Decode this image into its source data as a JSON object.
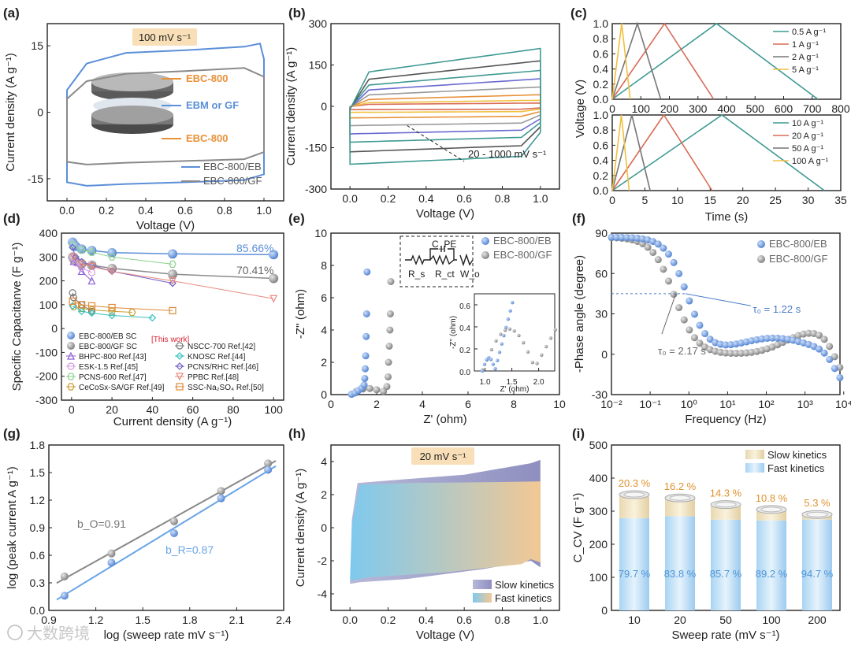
{
  "panels": [
    {
      "label": "(a)"
    },
    {
      "label": "(b)"
    },
    {
      "label": "(c)"
    },
    {
      "label": "(d)"
    },
    {
      "label": "(e)"
    },
    {
      "label": "(f)"
    },
    {
      "label": "(g)"
    },
    {
      "label": "(h)"
    },
    {
      "label": "(i)"
    }
  ],
  "colors": {
    "eb": "#5b8fd8",
    "gf": "#8a8a8a",
    "teal": "#3f9a93",
    "red": "#d96b57",
    "yellow": "#f0c040",
    "gray": "#777777",
    "orange": "#e8913a"
  },
  "watermark": "大数跨境",
  "chart_data": [
    {
      "id": "a",
      "type": "line",
      "xlabel": "Voltage (V)",
      "ylabel": "Current density (A g⁻¹)",
      "xlim": [
        -0.1,
        1.1
      ],
      "ylim": [
        -20,
        20
      ],
      "xticks": [
        "0.0",
        "0.2",
        "0.4",
        "0.6",
        "0.8",
        "1.0"
      ],
      "yticks": [
        "-15",
        "0",
        "15"
      ],
      "badge": "100 mV s⁻¹",
      "annotations": [
        "EBC-800",
        "EBM or GF",
        "EBC-800"
      ],
      "series": [
        {
          "name": "EBC-800/EB",
          "upper": [
            [
              0,
              5
            ],
            [
              0.1,
              11
            ],
            [
              0.3,
              13.4
            ],
            [
              0.6,
              14
            ],
            [
              0.9,
              14.8
            ],
            [
              0.98,
              15.5
            ],
            [
              1.0,
              12
            ]
          ],
          "lower": [
            [
              0,
              -15.8
            ],
            [
              0.1,
              -16.6
            ],
            [
              0.3,
              -16.2
            ],
            [
              0.6,
              -15.8
            ],
            [
              0.9,
              -15.3
            ],
            [
              1.0,
              -14
            ]
          ]
        },
        {
          "name": "EBC-800/GF",
          "upper": [
            [
              0,
              3
            ],
            [
              0.1,
              7
            ],
            [
              0.3,
              8.7
            ],
            [
              0.6,
              9.3
            ],
            [
              0.9,
              10
            ],
            [
              1.0,
              8
            ]
          ],
          "lower": [
            [
              0,
              -11.2
            ],
            [
              0.1,
              -11.8
            ],
            [
              0.3,
              -11.4
            ],
            [
              0.6,
              -11
            ],
            [
              0.9,
              -10.6
            ],
            [
              1.0,
              -9
            ]
          ]
        }
      ]
    },
    {
      "id": "b",
      "type": "line",
      "xlabel": "Voltage (V)",
      "ylabel": "Current density (A g⁻¹)",
      "xlim": [
        -0.1,
        1.1
      ],
      "ylim": [
        -300,
        300
      ],
      "xticks": [
        "0.0",
        "0.2",
        "0.4",
        "0.6",
        "0.8",
        "1.0"
      ],
      "yticks": [
        "-300",
        "-150",
        "0",
        "150",
        "300"
      ],
      "annotation": "20 - 1000 mV s⁻¹",
      "series_amplitudes": [
        12,
        22,
        42,
        70,
        100,
        130,
        165,
        210
      ]
    },
    {
      "id": "c",
      "type": "line",
      "xlabel": "Time (s)",
      "ylabel": "Voltage (V)",
      "top": {
        "xlim": [
          0,
          800
        ],
        "ylim": [
          0,
          1.0
        ],
        "xticks": [
          "0",
          "100",
          "200",
          "300",
          "400",
          "500",
          "600",
          "700",
          "800"
        ],
        "yticks": [
          "0.0",
          "0.2",
          "0.4",
          "0.6",
          "0.8",
          "1.0"
        ],
        "series": [
          {
            "name": "0.5 A g⁻¹",
            "peak": 365,
            "end": 720
          },
          {
            "name": "1 A g⁻¹",
            "peak": 183,
            "end": 355
          },
          {
            "name": "2 A g⁻¹",
            "peak": 88,
            "end": 170
          },
          {
            "name": "5 A g⁻¹",
            "peak": 33,
            "end": 63
          }
        ]
      },
      "bottom": {
        "xlim": [
          0,
          35
        ],
        "ylim": [
          0,
          1.0
        ],
        "xticks": [
          "0",
          "5",
          "10",
          "15",
          "20",
          "25",
          "30",
          "35"
        ],
        "yticks": [
          "0.0",
          "0.2",
          "0.4",
          "0.6",
          "0.8",
          "1.0"
        ],
        "series": [
          {
            "name": "10 A g⁻¹",
            "peak": 16.8,
            "end": 32.5
          },
          {
            "name": "20 A g⁻¹",
            "peak": 7.9,
            "end": 15.3
          },
          {
            "name": "50 A g⁻¹",
            "peak": 3.0,
            "end": 5.8
          },
          {
            "name": "100 A g⁻¹",
            "peak": 1.4,
            "end": 2.6
          }
        ]
      }
    },
    {
      "id": "d",
      "type": "scatter",
      "xlabel": "Current density (A g⁻¹)",
      "ylabel": "Specific Capacitanve (F g⁻¹)",
      "xlim": [
        -5,
        105
      ],
      "ylim": [
        -300,
        400
      ],
      "xticks": [
        "0",
        "20",
        "40",
        "60",
        "80",
        "100"
      ],
      "yticks": [
        "-300",
        "-200",
        "-100",
        "0",
        "100",
        "200",
        "300",
        "400"
      ],
      "labels": {
        "eb_pct": "85.66%",
        "gf_pct": "70.41%",
        "this_work": "[This work]"
      },
      "series": [
        {
          "name": "EBC-800/EB SC",
          "points": [
            [
              0.5,
              362
            ],
            [
              1,
              355
            ],
            [
              2,
              345
            ],
            [
              5,
              333
            ],
            [
              10,
              327
            ],
            [
              20,
              318
            ],
            [
              50,
              313
            ],
            [
              100,
              310
            ]
          ]
        },
        {
          "name": "EBC-800/GF SC",
          "points": [
            [
              0.5,
              300
            ],
            [
              1,
              292
            ],
            [
              2,
              283
            ],
            [
              5,
              272
            ],
            [
              10,
              266
            ],
            [
              20,
              252
            ],
            [
              50,
              228
            ],
            [
              100,
              210
            ]
          ]
        },
        {
          "name": "BHPC-800 Ref.[43]",
          "points": [
            [
              1,
              282
            ],
            [
              5,
              240
            ],
            [
              10,
              200
            ]
          ]
        },
        {
          "name": "ESK-1.5 Ref.[45]",
          "points": [
            [
              0.5,
              300
            ],
            [
              2,
              275
            ],
            [
              5,
              255
            ],
            [
              10,
              235
            ]
          ]
        },
        {
          "name": "PCNS-600 Ref.[47]",
          "points": [
            [
              0.5,
              350
            ],
            [
              5,
              330
            ],
            [
              10,
              320
            ],
            [
              20,
              300
            ],
            [
              50,
              270
            ]
          ]
        },
        {
          "name": "CeCoSx-SA/GF Ref.[49]",
          "points": [
            [
              1,
              92
            ],
            [
              5,
              85
            ],
            [
              10,
              78
            ],
            [
              20,
              72
            ],
            [
              30,
              68
            ]
          ]
        },
        {
          "name": "NSCC-700 Ref.[42]",
          "points": [
            [
              0.5,
              150
            ],
            [
              1,
              130
            ],
            [
              5,
              100
            ],
            [
              10,
              72
            ]
          ]
        },
        {
          "name": "KNOSC Ref.[44]",
          "points": [
            [
              0.5,
              95
            ],
            [
              5,
              72
            ],
            [
              10,
              65
            ],
            [
              20,
              55
            ],
            [
              40,
              45
            ]
          ]
        },
        {
          "name": "PCNS/RHC Ref.[46]",
          "points": [
            [
              0.5,
              340
            ],
            [
              2,
              300
            ],
            [
              5,
              280
            ],
            [
              10,
              265
            ],
            [
              20,
              240
            ],
            [
              50,
              190
            ]
          ]
        },
        {
          "name": "PPBC Ref.[48]",
          "points": [
            [
              1,
              300
            ],
            [
              5,
              270
            ],
            [
              10,
              260
            ],
            [
              20,
              240
            ],
            [
              50,
              200
            ],
            [
              100,
              125
            ]
          ]
        },
        {
          "name": "SSC-Na₂SO₄ Ref.[50]",
          "points": [
            [
              0.5,
              115
            ],
            [
              5,
              100
            ],
            [
              10,
              95
            ],
            [
              20,
              88
            ],
            [
              50,
              75
            ]
          ]
        }
      ]
    },
    {
      "id": "e",
      "type": "scatter",
      "xlabel": "Z' (ohm)",
      "ylabel": "-Z'' (ohm)",
      "xlim": [
        0,
        10
      ],
      "ylim": [
        0,
        10
      ],
      "xticks": [
        "0",
        "2",
        "4",
        "6",
        "8",
        "10"
      ],
      "yticks": [
        "0",
        "2",
        "4",
        "6",
        "8",
        "10"
      ],
      "circuit": {
        "cpe": "C_PE",
        "rs": "R_s",
        "rct": "R_ct",
        "wo": "W_o"
      },
      "inset": {
        "xlabel": "Z' (ohm)",
        "ylabel": "-Z'' (ohm)",
        "xticks": [
          "1.0",
          "1.5",
          "2.0"
        ],
        "yticks": [
          "0.0",
          "0.2",
          "0.4",
          "0.6"
        ]
      },
      "series": [
        {
          "name": "EBC-800/EB"
        },
        {
          "name": "EBC-800/GF"
        }
      ]
    },
    {
      "id": "f",
      "type": "scatter",
      "xlabel": "Frequency (Hz)",
      "ylabel": "-Phase angle (degree)",
      "xscale": "log",
      "xlim": [
        0.01,
        10000
      ],
      "ylim": [
        -30,
        90
      ],
      "xticks": [
        "10⁻²",
        "10⁻¹",
        "10⁰",
        "10¹",
        "10²",
        "10³",
        "10⁴"
      ],
      "yticks": [
        "-30",
        "0",
        "30",
        "60",
        "90"
      ],
      "annotations": [
        "τ₀ = 1.22 s",
        "τ₀ = 2.17 s"
      ],
      "series": [
        {
          "name": "EBC-800/EB"
        },
        {
          "name": "EBC-800/GF"
        }
      ]
    },
    {
      "id": "g",
      "type": "scatter",
      "xlabel": "log (sweep rate mV s⁻¹)",
      "ylabel": "log (peak current A g⁻¹)",
      "xlim": [
        0.9,
        2.4
      ],
      "ylim": [
        0,
        1.8
      ],
      "xticks": [
        "0.9",
        "1.2",
        "1.5",
        "1.8",
        "2.1",
        "2.4"
      ],
      "yticks": [
        "0.0",
        "0.3",
        "0.6",
        "0.9",
        "1.2",
        "1.5",
        "1.8"
      ],
      "annotations": {
        "bo": "b_O=0.91",
        "br": "b_R=0.87"
      },
      "series": [
        {
          "name": "O",
          "x": [
            1.0,
            1.3,
            1.7,
            2.0,
            2.3
          ],
          "y": [
            0.37,
            0.62,
            0.97,
            1.3,
            1.6
          ]
        },
        {
          "name": "R",
          "x": [
            1.0,
            1.3,
            1.7,
            2.0,
            2.3
          ],
          "y": [
            0.16,
            0.52,
            0.84,
            1.22,
            1.53
          ]
        }
      ]
    },
    {
      "id": "h",
      "type": "area",
      "xlabel": "Voltage (V)",
      "ylabel": "Current density (A g⁻¹)",
      "xlim": [
        -0.1,
        1.1
      ],
      "ylim": [
        -5,
        5
      ],
      "xticks": [
        "0.0",
        "0.2",
        "0.4",
        "0.6",
        "0.8",
        "1.0"
      ],
      "yticks": [
        "-4",
        "-2",
        "0",
        "2",
        "4"
      ],
      "badge": "20 mV s⁻¹",
      "legend": [
        "Slow kinetics",
        "Fast kinetics"
      ]
    },
    {
      "id": "i",
      "type": "bar",
      "xlabel": "Sweep rate (mV s⁻¹)",
      "ylabel": "C_CV (F g⁻¹)",
      "ylim": [
        0,
        500
      ],
      "categories": [
        "10",
        "20",
        "50",
        "100",
        "200"
      ],
      "yticks": [
        "0",
        "100",
        "200",
        "300",
        "400",
        "500"
      ],
      "legend": [
        "Slow kinetics",
        "Fast kinetics"
      ],
      "totals": [
        350,
        340,
        320,
        305,
        290
      ],
      "slow_pct": [
        "20.3 %",
        "16.2 %",
        "14.3 %",
        "10.8 %",
        "5.3 %"
      ],
      "fast_pct": [
        "79.7 %",
        "83.8 %",
        "85.7 %",
        "89.2 %",
        "94.7 %"
      ],
      "slow_frac": [
        0.203,
        0.162,
        0.143,
        0.108,
        0.053
      ]
    }
  ]
}
